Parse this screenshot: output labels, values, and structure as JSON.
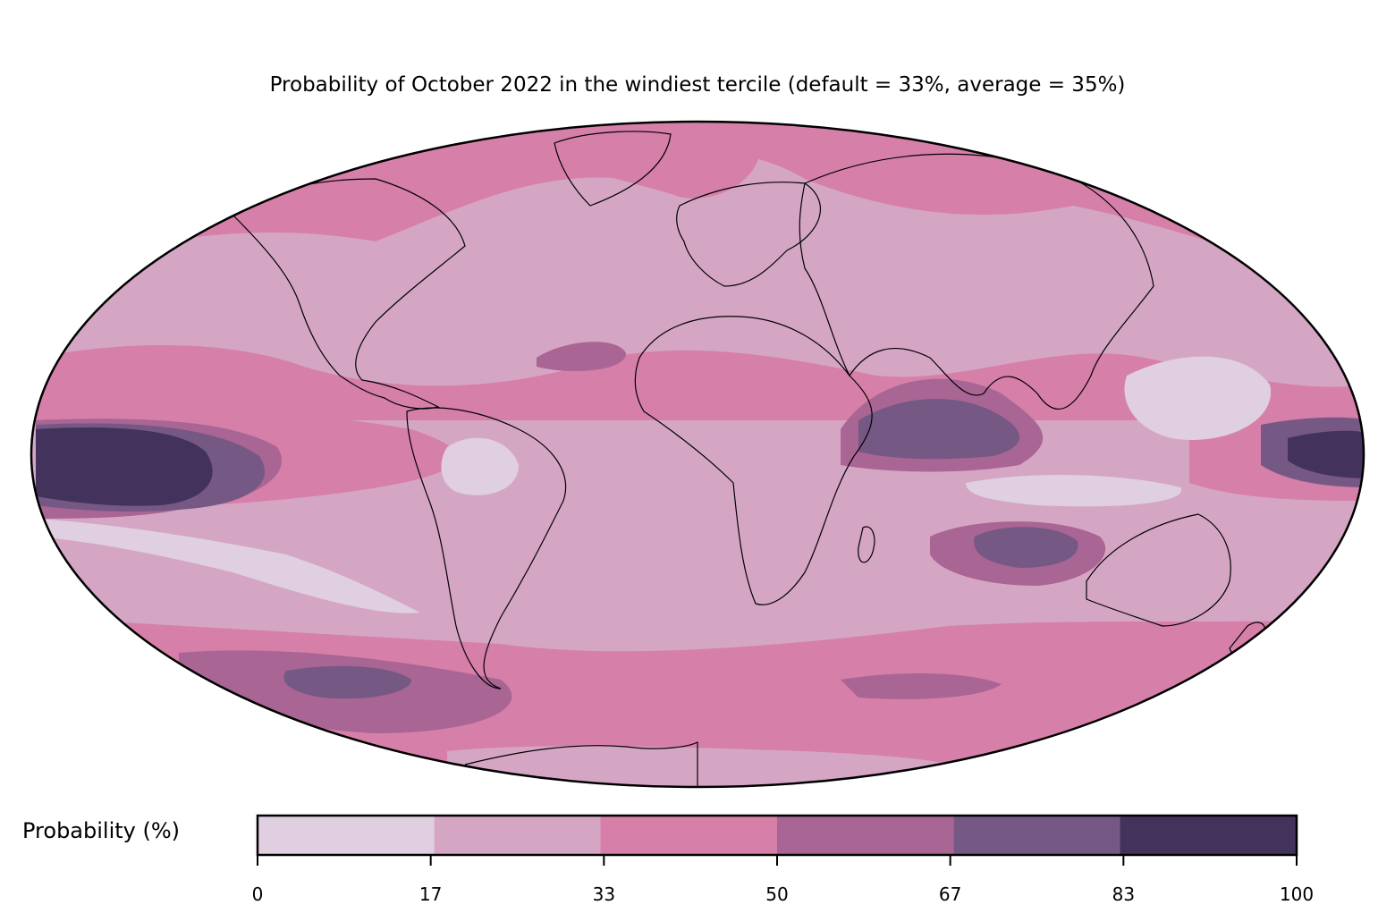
{
  "title": "Probability of October 2022 in the windiest tercile (default = 33%, average = 35%)",
  "colorbar": {
    "label": "Probability (%)",
    "ticks": [
      "0",
      "17",
      "33",
      "50",
      "67",
      "83",
      "100"
    ],
    "bins": [
      {
        "from": 0,
        "to": 17,
        "color": "#dfcfe0"
      },
      {
        "from": 17,
        "to": 33,
        "color": "#d5a6c4"
      },
      {
        "from": 33,
        "to": 50,
        "color": "#d67fa9"
      },
      {
        "from": 50,
        "to": 67,
        "color": "#a96593"
      },
      {
        "from": 67,
        "to": 83,
        "color": "#765884"
      },
      {
        "from": 83,
        "to": 100,
        "color": "#43335c"
      }
    ]
  },
  "map": {
    "projection": "mollweide",
    "background_color": "#d5a6c4",
    "coastline_color": "#000000",
    "border_color": "#888888"
  }
}
